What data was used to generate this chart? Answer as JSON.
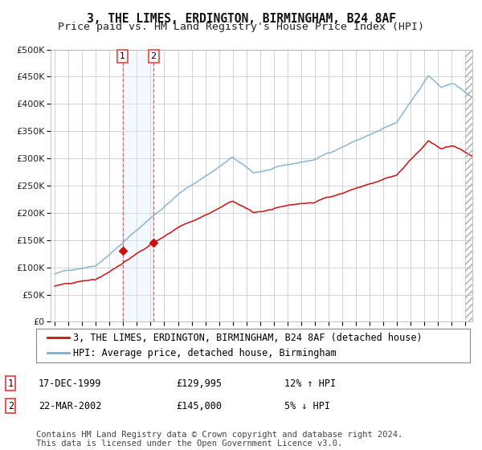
{
  "title": "3, THE LIMES, ERDINGTON, BIRMINGHAM, B24 8AF",
  "subtitle": "Price paid vs. HM Land Registry's House Price Index (HPI)",
  "ylim": [
    0,
    500000
  ],
  "yticks": [
    0,
    50000,
    100000,
    150000,
    200000,
    250000,
    300000,
    350000,
    400000,
    450000,
    500000
  ],
  "hpi_color": "#7bafd4",
  "price_color": "#cc1111",
  "background_color": "#ffffff",
  "chart_bg_color": "#ffffff",
  "grid_color": "#cccccc",
  "purchase1_date": 1999.96,
  "purchase1_price": 129995,
  "purchase2_date": 2002.22,
  "purchase2_price": 145000,
  "legend_entry1": "3, THE LIMES, ERDINGTON, BIRMINGHAM, B24 8AF (detached house)",
  "legend_entry2": "HPI: Average price, detached house, Birmingham",
  "table_row1": [
    "1",
    "17-DEC-1999",
    "£129,995",
    "12% ↑ HPI"
  ],
  "table_row2": [
    "2",
    "22-MAR-2002",
    "£145,000",
    "5% ↓ HPI"
  ],
  "footer": "Contains HM Land Registry data © Crown copyright and database right 2024.\nThis data is licensed under the Open Government Licence v3.0.",
  "title_fontsize": 10.5,
  "subtitle_fontsize": 9.5,
  "tick_fontsize": 8,
  "legend_fontsize": 8.5,
  "footer_fontsize": 7.5,
  "xstart": 1995,
  "xend": 2025,
  "span_color": "#ddeeff",
  "vline_color": "#ee4444"
}
